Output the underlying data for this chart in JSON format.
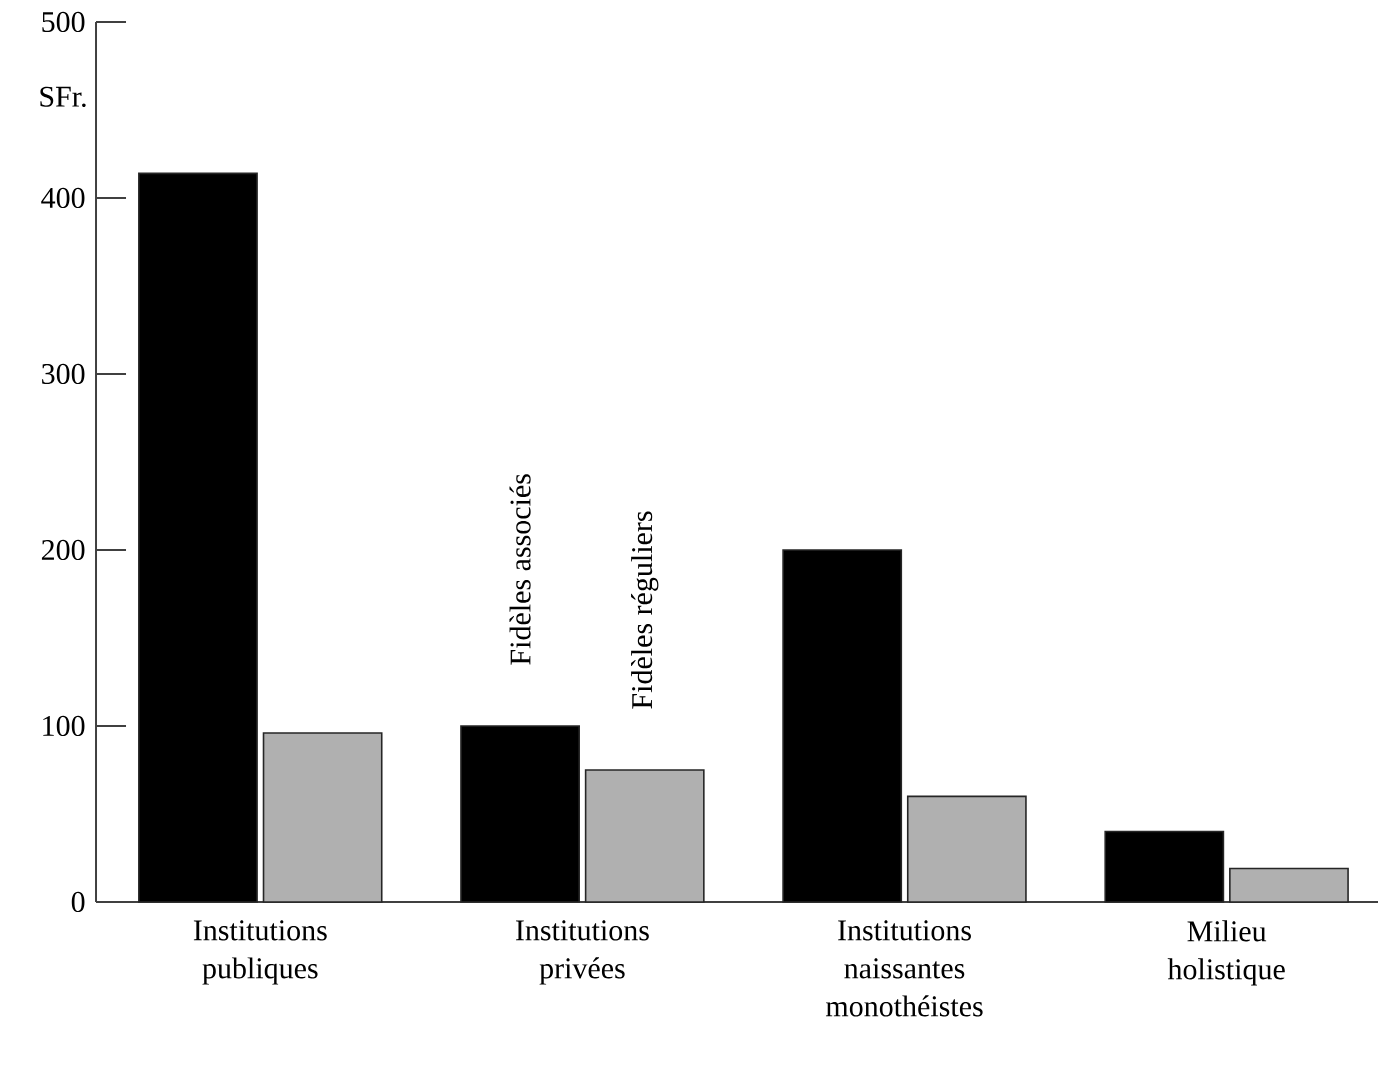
{
  "chart_data": {
    "type": "bar",
    "ylabel": "SFr.",
    "categories": [
      "Institutions publiques",
      "Institutions privées",
      "Institutions naissantes monothéistes",
      "Milieu holistique"
    ],
    "series": [
      {
        "name": "Fidèles associés",
        "color": "#000000",
        "values": [
          414,
          100,
          200,
          40
        ]
      },
      {
        "name": "Fidèles réguliers",
        "color": "#b0b0b0",
        "values": [
          96,
          75,
          60,
          19
        ]
      }
    ],
    "ylim": [
      0,
      500
    ],
    "yticks": [
      0,
      100,
      200,
      300,
      400,
      500
    ],
    "grid": false,
    "legend": false
  }
}
